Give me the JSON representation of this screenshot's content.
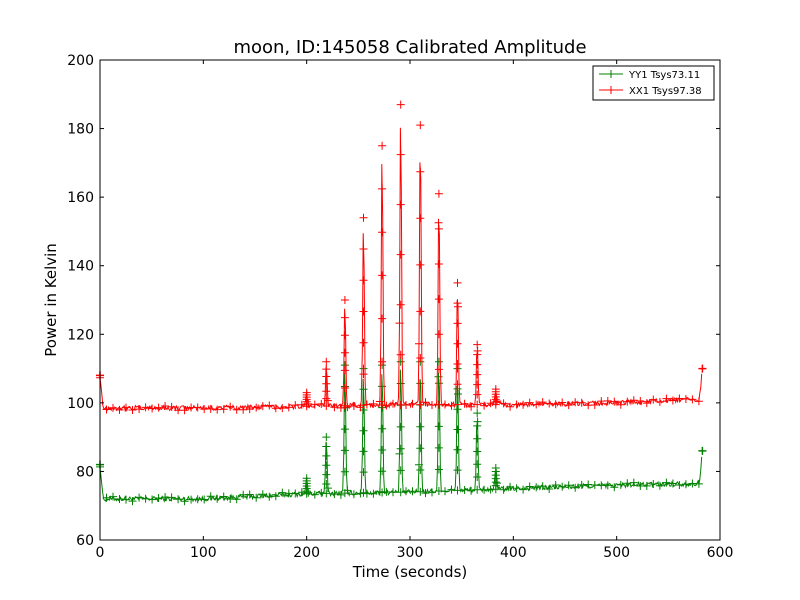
{
  "chart_data": {
    "type": "line",
    "title": "moon, ID:145058 Calibrated Amplitude",
    "xlabel": "Time (seconds)",
    "ylabel": "Power in Kelvin",
    "xlim": [
      0,
      600
    ],
    "ylim": [
      60,
      200
    ],
    "xticks": [
      0,
      100,
      200,
      300,
      400,
      500,
      600
    ],
    "yticks": [
      60,
      80,
      100,
      120,
      140,
      160,
      180,
      200
    ],
    "grid": false,
    "legend_position": "top-right",
    "series": [
      {
        "name": "YY1 Tsys73.11",
        "color": "#008000",
        "baseline": [
          [
            0,
            82
          ],
          [
            3,
            72
          ],
          [
            100,
            72
          ],
          [
            200,
            73.5
          ],
          [
            300,
            74
          ],
          [
            400,
            75
          ],
          [
            500,
            76
          ],
          [
            580,
            76.5
          ],
          [
            583,
            86
          ]
        ],
        "peaks": [
          [
            200,
            78
          ],
          [
            219,
            90
          ],
          [
            237,
            111
          ],
          [
            255,
            110
          ],
          [
            273,
            111
          ],
          [
            291,
            112
          ],
          [
            310,
            112
          ],
          [
            328,
            112
          ],
          [
            346,
            110
          ],
          [
            365,
            97
          ],
          [
            383,
            81
          ]
        ]
      },
      {
        "name": "XX1 Tsys97.38",
        "color": "#ff0000",
        "baseline": [
          [
            0,
            108
          ],
          [
            3,
            98.5
          ],
          [
            100,
            98.5
          ],
          [
            200,
            99
          ],
          [
            300,
            99.5
          ],
          [
            400,
            99.5
          ],
          [
            500,
            100
          ],
          [
            580,
            101
          ],
          [
            583,
            110
          ]
        ],
        "peaks": [
          [
            200,
            103
          ],
          [
            219,
            112
          ],
          [
            237,
            130
          ],
          [
            255,
            154
          ],
          [
            273,
            175
          ],
          [
            291,
            187
          ],
          [
            310,
            181
          ],
          [
            328,
            161
          ],
          [
            346,
            135
          ],
          [
            365,
            117
          ],
          [
            383,
            104
          ]
        ]
      }
    ]
  }
}
